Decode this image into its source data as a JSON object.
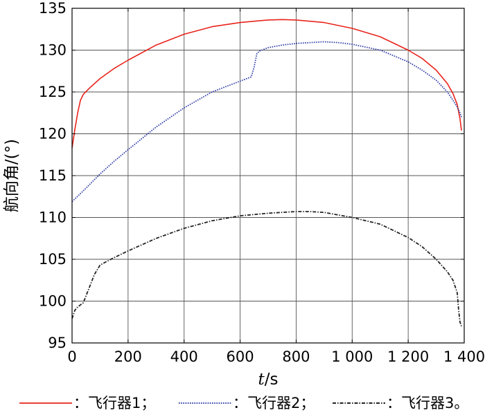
{
  "chart_data": {
    "type": "line",
    "xlabel_var": "t",
    "xlabel_unit": "/s",
    "ylabel": "航向角/(°)",
    "xlim": [
      0,
      1400
    ],
    "ylim": [
      95,
      135
    ],
    "xticks": [
      0,
      200,
      400,
      600,
      800,
      1000,
      1200,
      1400
    ],
    "xtick_labels": [
      "0",
      "200",
      "400",
      "600",
      "800",
      "1 000",
      "1 200",
      "1 400"
    ],
    "yticks": [
      95,
      100,
      105,
      110,
      115,
      120,
      125,
      130,
      135
    ],
    "ytick_labels": [
      "95",
      "100",
      "105",
      "110",
      "115",
      "120",
      "125",
      "130",
      "135"
    ],
    "grid": true,
    "legend_position": "bottom",
    "series": [
      {
        "name": "飞行器1",
        "legend_label": "：飞行器1；",
        "color": "#e8231a",
        "style": "solid",
        "x": [
          0,
          10,
          20,
          30,
          40,
          60,
          100,
          150,
          200,
          300,
          400,
          500,
          600,
          700,
          750,
          800,
          900,
          1000,
          1100,
          1200,
          1250,
          1300,
          1340,
          1360,
          1375,
          1385,
          1390
        ],
        "y": [
          118.3,
          120.5,
          122.5,
          124.0,
          124.7,
          125.4,
          126.6,
          127.8,
          128.8,
          130.6,
          131.9,
          132.8,
          133.3,
          133.6,
          133.65,
          133.6,
          133.3,
          132.6,
          131.6,
          130.0,
          129.0,
          127.6,
          126.0,
          124.8,
          123.5,
          121.8,
          120.4
        ]
      },
      {
        "name": "飞行器2",
        "legend_label": "：飞行器2；",
        "color": "#3340a8",
        "style": "dotted",
        "x": [
          0,
          50,
          100,
          150,
          200,
          300,
          400,
          500,
          600,
          640,
          650,
          660,
          670,
          700,
          750,
          800,
          850,
          900,
          950,
          1000,
          1100,
          1200,
          1250,
          1300,
          1340,
          1360,
          1375,
          1385,
          1390
        ],
        "y": [
          111.9,
          113.5,
          115.2,
          116.7,
          118.1,
          120.8,
          123.1,
          125.0,
          126.3,
          126.8,
          128.0,
          129.6,
          129.9,
          130.3,
          130.6,
          130.8,
          130.9,
          131.0,
          130.9,
          130.7,
          130.0,
          128.6,
          127.6,
          126.4,
          125.0,
          124.0,
          123.2,
          122.5,
          122.0
        ]
      },
      {
        "name": "飞行器3",
        "legend_label": "：飞行器3。",
        "color": "#222222",
        "style": "dashdot",
        "x": [
          0,
          10,
          20,
          40,
          60,
          80,
          100,
          110,
          150,
          200,
          300,
          400,
          500,
          600,
          700,
          800,
          850,
          900,
          1000,
          1100,
          1200,
          1250,
          1300,
          1340,
          1360,
          1375,
          1380,
          1385,
          1390
        ],
        "y": [
          97.9,
          98.9,
          99.3,
          99.8,
          101.5,
          103.2,
          104.3,
          104.5,
          105.2,
          106.0,
          107.5,
          108.7,
          109.6,
          110.2,
          110.5,
          110.7,
          110.7,
          110.6,
          110.0,
          109.2,
          107.6,
          106.5,
          105.0,
          103.5,
          102.5,
          101.0,
          99.0,
          97.5,
          97.0
        ]
      }
    ]
  }
}
